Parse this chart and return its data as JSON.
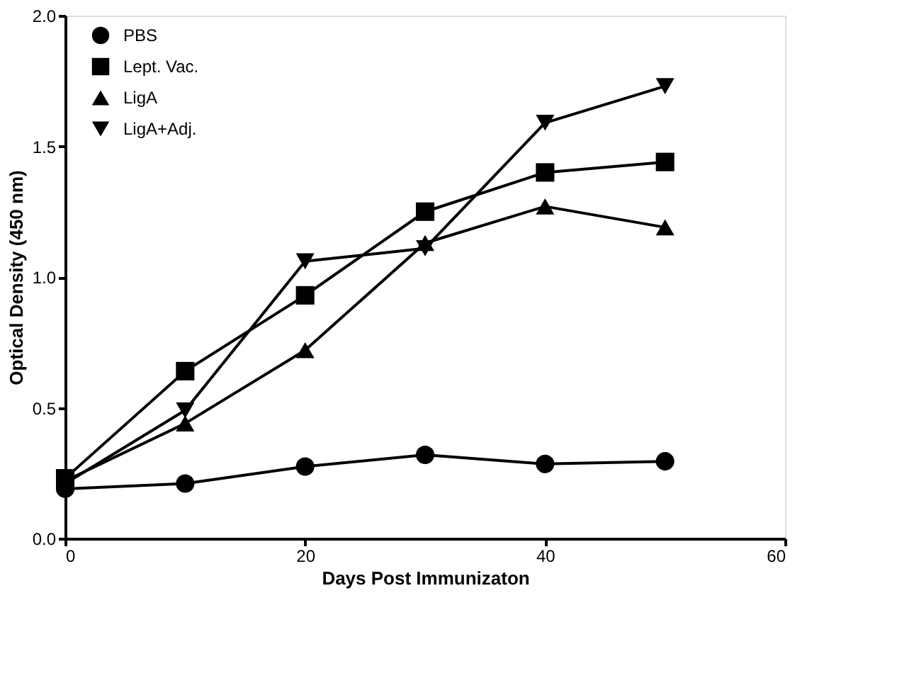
{
  "chart_data": {
    "type": "line",
    "xlabel": "Days Post Immunizaton",
    "ylabel": "Optical Density (450 nm)",
    "x": [
      0,
      10,
      20,
      30,
      40,
      50
    ],
    "series": [
      {
        "name": "PBS",
        "color": "#000000",
        "marker": "circle",
        "values": [
          0.19,
          0.21,
          0.275,
          0.32,
          0.285,
          0.295
        ]
      },
      {
        "name": "Lept. Vac.",
        "color": "#000000",
        "marker": "square",
        "values": [
          0.23,
          0.64,
          0.93,
          1.25,
          1.4,
          1.44
        ]
      },
      {
        "name": "LigA",
        "color": "#000000",
        "marker": "triangle",
        "values": [
          0.22,
          0.44,
          0.72,
          1.13,
          1.27,
          1.19
        ]
      },
      {
        "name": "LigA+Adj.",
        "color": "#000000",
        "marker": "triangle-down",
        "values": [
          0.21,
          0.49,
          1.06,
          1.11,
          1.59,
          1.73
        ]
      }
    ],
    "xlim": [
      0,
      60
    ],
    "xticks": [
      0,
      20,
      40,
      60
    ],
    "ylim": [
      0,
      2
    ],
    "yticks": [
      {
        "value": 0,
        "label": "0.0"
      },
      0.5,
      {
        "value": 1,
        "label": "1.0"
      },
      1.5,
      {
        "value": 2,
        "label": "2.0"
      }
    ],
    "grid": false,
    "legend": "top left",
    "line_style": "solid"
  }
}
